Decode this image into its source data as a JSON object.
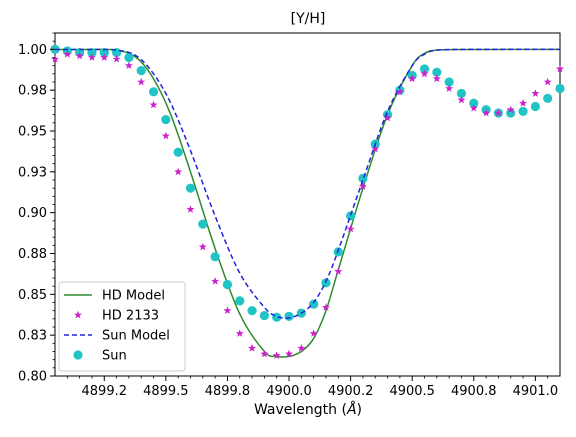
{
  "chart_data": {
    "type": "line",
    "title": "[Y/H]",
    "xlabel": "Wavelength (",
    "xlabel_unit": "Å",
    "xlabel_close": ")",
    "ylabel": "",
    "xlim": [
      4899.05,
      4901.1
    ],
    "ylim": [
      0.8,
      1.01
    ],
    "x_ticks": [
      4899.25,
      4899.5,
      4899.75,
      4900.0,
      4900.25,
      4900.5,
      4900.75,
      4901.0
    ],
    "x_tick_labels": [
      "4899.2",
      "4899.5",
      "4899.8",
      "4900.0",
      "4900.2",
      "4900.5",
      "4900.8",
      "4901.0"
    ],
    "y_ticks": [
      0.8,
      0.825,
      0.85,
      0.875,
      0.9,
      0.925,
      0.95,
      0.975,
      1.0
    ],
    "y_tick_labels": [
      "0.80",
      "0.83",
      "0.85",
      "0.88",
      "0.90",
      "0.93",
      "0.95",
      "0.98",
      "1.00"
    ],
    "grid": false,
    "legend_position": "bottom-left",
    "series": [
      {
        "name": "HD Model",
        "style": "solid-line",
        "color": "#2e8b2e",
        "x": [
          4899.05,
          4899.2,
          4899.3,
          4899.38,
          4899.45,
          4899.52,
          4899.6,
          4899.7,
          4899.8,
          4899.9,
          4899.95,
          4900.0,
          4900.05,
          4900.1,
          4900.15,
          4900.2,
          4900.3,
          4900.4,
          4900.5,
          4900.55,
          4900.6,
          4900.7,
          4900.8,
          4900.9,
          4901.1
        ],
        "y": [
          0.9999,
          0.9999,
          0.9995,
          0.995,
          0.982,
          0.96,
          0.925,
          0.878,
          0.838,
          0.815,
          0.812,
          0.812,
          0.815,
          0.823,
          0.84,
          0.865,
          0.915,
          0.96,
          0.99,
          0.9975,
          0.9995,
          0.9999,
          0.9999,
          1.0,
          1.0
        ]
      },
      {
        "name": "HD 2133",
        "style": "star-markers",
        "color": "#cc22cc",
        "x": [
          4899.05,
          4899.1,
          4899.15,
          4899.2,
          4899.25,
          4899.3,
          4899.35,
          4899.4,
          4899.45,
          4899.5,
          4899.55,
          4899.6,
          4899.65,
          4899.7,
          4899.75,
          4899.8,
          4899.85,
          4899.9,
          4899.95,
          4900.0,
          4900.05,
          4900.1,
          4900.15,
          4900.2,
          4900.25,
          4900.3,
          4900.35,
          4900.4,
          4900.45,
          4900.5,
          4900.55,
          4900.6,
          4900.65,
          4900.7,
          4900.75,
          4900.8,
          4900.85,
          4900.9,
          4900.95,
          4901.0,
          4901.05,
          4901.1
        ],
        "y": [
          0.994,
          0.997,
          0.996,
          0.995,
          0.995,
          0.994,
          0.99,
          0.98,
          0.966,
          0.947,
          0.925,
          0.902,
          0.879,
          0.858,
          0.84,
          0.826,
          0.817,
          0.8135,
          0.8125,
          0.8135,
          0.817,
          0.826,
          0.842,
          0.864,
          0.89,
          0.916,
          0.939,
          0.958,
          0.974,
          0.982,
          0.985,
          0.982,
          0.976,
          0.969,
          0.964,
          0.961,
          0.961,
          0.963,
          0.967,
          0.973,
          0.98,
          0.988
        ]
      },
      {
        "name": "Sun Model",
        "style": "dashed-line",
        "color": "#2222dd",
        "x": [
          4899.05,
          4899.2,
          4899.3,
          4899.38,
          4899.45,
          4899.52,
          4899.6,
          4899.7,
          4899.8,
          4899.9,
          4899.95,
          4900.0,
          4900.05,
          4900.1,
          4900.15,
          4900.2,
          4900.3,
          4900.4,
          4900.5,
          4900.55,
          4900.6,
          4900.7,
          4900.8,
          4900.9,
          4901.1
        ],
        "y": [
          0.9999,
          0.9999,
          0.9995,
          0.996,
          0.985,
          0.967,
          0.938,
          0.898,
          0.863,
          0.842,
          0.8365,
          0.8355,
          0.8385,
          0.845,
          0.858,
          0.877,
          0.92,
          0.962,
          0.99,
          0.997,
          0.9995,
          0.9999,
          1.0,
          1.0,
          1.0
        ]
      },
      {
        "name": "Sun",
        "style": "circle-markers",
        "color": "#20c4c4",
        "x": [
          4899.05,
          4899.1,
          4899.15,
          4899.2,
          4899.25,
          4899.3,
          4899.35,
          4899.4,
          4899.45,
          4899.5,
          4899.55,
          4899.6,
          4899.65,
          4899.7,
          4899.75,
          4899.8,
          4899.85,
          4899.9,
          4899.95,
          4900.0,
          4900.05,
          4900.1,
          4900.15,
          4900.2,
          4900.25,
          4900.3,
          4900.35,
          4900.4,
          4900.45,
          4900.5,
          4900.55,
          4900.6,
          4900.65,
          4900.7,
          4900.75,
          4900.8,
          4900.85,
          4900.9,
          4900.95,
          4901.0,
          4901.05,
          4901.1
        ],
        "y": [
          1.0,
          0.999,
          0.998,
          0.998,
          0.998,
          0.998,
          0.995,
          0.987,
          0.974,
          0.957,
          0.937,
          0.915,
          0.893,
          0.873,
          0.856,
          0.846,
          0.84,
          0.837,
          0.836,
          0.8365,
          0.8385,
          0.844,
          0.857,
          0.876,
          0.898,
          0.921,
          0.942,
          0.96,
          0.975,
          0.984,
          0.988,
          0.986,
          0.98,
          0.973,
          0.967,
          0.963,
          0.961,
          0.961,
          0.962,
          0.965,
          0.97,
          0.976
        ]
      }
    ]
  }
}
